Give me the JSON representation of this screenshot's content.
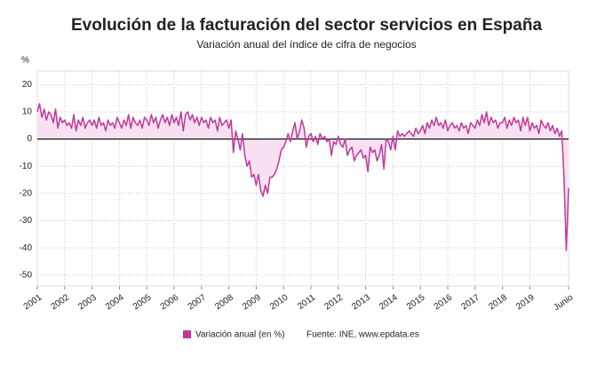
{
  "chart_data": {
    "type": "line",
    "title": "Evolución de la facturación del sector servicios en España",
    "subtitle": "Variación anual del índice de cifra de negocios",
    "y_unit": "%",
    "source": "Fuente: INE, www.epdata.es",
    "ylim": [
      -54,
      25
    ],
    "yticks": [
      -50,
      -40,
      -30,
      -20,
      -10,
      0,
      10,
      20
    ],
    "grid": true,
    "categories": [
      "2001",
      null,
      null,
      null,
      null,
      null,
      null,
      null,
      null,
      null,
      null,
      null,
      "2002",
      null,
      null,
      null,
      null,
      null,
      null,
      null,
      null,
      null,
      null,
      null,
      "2003",
      null,
      null,
      null,
      null,
      null,
      null,
      null,
      null,
      null,
      null,
      null,
      "2004",
      null,
      null,
      null,
      null,
      null,
      null,
      null,
      null,
      null,
      null,
      null,
      "2005",
      null,
      null,
      null,
      null,
      null,
      null,
      null,
      null,
      null,
      null,
      null,
      "2006",
      null,
      null,
      null,
      null,
      null,
      null,
      null,
      null,
      null,
      null,
      null,
      "2007",
      null,
      null,
      null,
      null,
      null,
      null,
      null,
      null,
      null,
      null,
      null,
      "2008",
      null,
      null,
      null,
      null,
      null,
      null,
      null,
      null,
      null,
      null,
      null,
      "2009",
      null,
      null,
      null,
      null,
      null,
      null,
      null,
      null,
      null,
      null,
      null,
      "2010",
      null,
      null,
      null,
      null,
      null,
      null,
      null,
      null,
      null,
      null,
      null,
      "2011",
      null,
      null,
      null,
      null,
      null,
      null,
      null,
      null,
      null,
      null,
      null,
      "2012",
      null,
      null,
      null,
      null,
      null,
      null,
      null,
      null,
      null,
      null,
      null,
      "2013",
      null,
      null,
      null,
      null,
      null,
      null,
      null,
      null,
      null,
      null,
      null,
      "2014",
      null,
      null,
      null,
      null,
      null,
      null,
      null,
      null,
      null,
      null,
      null,
      "2015",
      null,
      null,
      null,
      null,
      null,
      null,
      null,
      null,
      null,
      null,
      null,
      "2016",
      null,
      null,
      null,
      null,
      null,
      null,
      null,
      null,
      null,
      null,
      null,
      "2017",
      null,
      null,
      null,
      null,
      null,
      null,
      null,
      null,
      null,
      null,
      null,
      "2018",
      null,
      null,
      null,
      null,
      null,
      null,
      null,
      null,
      null,
      null,
      null,
      "2019",
      null,
      null,
      null,
      null,
      null,
      null,
      null,
      null,
      null,
      null,
      null,
      null,
      null,
      null,
      null,
      null,
      "Junio"
    ],
    "series": [
      {
        "name": "Variación anual (en %)",
        "color": "#c0399a",
        "values": [
          10,
          13,
          8,
          11,
          7,
          10,
          9,
          6,
          11,
          4,
          8,
          6,
          7,
          5,
          6,
          4,
          9,
          3,
          7,
          5,
          8,
          4,
          6,
          7,
          5,
          7,
          4,
          8,
          5,
          6,
          3,
          7,
          5,
          6,
          4,
          8,
          6,
          4,
          7,
          5,
          9,
          4,
          8,
          6,
          5,
          7,
          4,
          8,
          7,
          5,
          9,
          6,
          8,
          4,
          7,
          9,
          6,
          8,
          5,
          9,
          6,
          8,
          5,
          10,
          3,
          9,
          10,
          7,
          9,
          6,
          8,
          5,
          8,
          6,
          7,
          4,
          8,
          6,
          7,
          3,
          8,
          5,
          6,
          7,
          4,
          7,
          -5,
          3,
          0,
          -4,
          2,
          -6,
          -10,
          -8,
          -14,
          -13,
          -17,
          -13,
          -19,
          -21,
          -17,
          -20,
          -14,
          -14,
          -13,
          -11,
          -8,
          -4,
          -3,
          -1,
          2,
          -1,
          3,
          6,
          0,
          3,
          7,
          4,
          -3,
          1,
          2,
          -1,
          1,
          -2,
          2,
          0,
          1,
          -1,
          0,
          -6,
          -1,
          -2,
          1,
          -2,
          -3,
          0,
          -6,
          -4,
          -3,
          -8,
          -6,
          -5,
          -4,
          -7,
          -6,
          -12,
          -3,
          -5,
          -4,
          -8,
          -6,
          -2,
          -11,
          0,
          -1,
          -4,
          1,
          -4,
          3,
          1,
          2,
          1,
          2,
          3,
          2,
          1,
          4,
          2,
          3,
          5,
          2,
          6,
          4,
          7,
          5,
          8,
          5,
          6,
          4,
          7,
          3,
          5,
          6,
          4,
          5,
          3,
          6,
          4,
          5,
          2,
          6,
          5,
          4,
          7,
          5,
          9,
          6,
          10,
          5,
          8,
          6,
          7,
          4,
          6,
          6,
          8,
          4,
          7,
          5,
          8,
          6,
          7,
          3,
          8,
          5,
          8,
          3,
          6,
          4,
          5,
          2,
          7,
          5,
          4,
          6,
          3,
          5,
          2,
          4,
          1,
          3,
          -14,
          -41,
          -18
        ]
      }
    ]
  }
}
